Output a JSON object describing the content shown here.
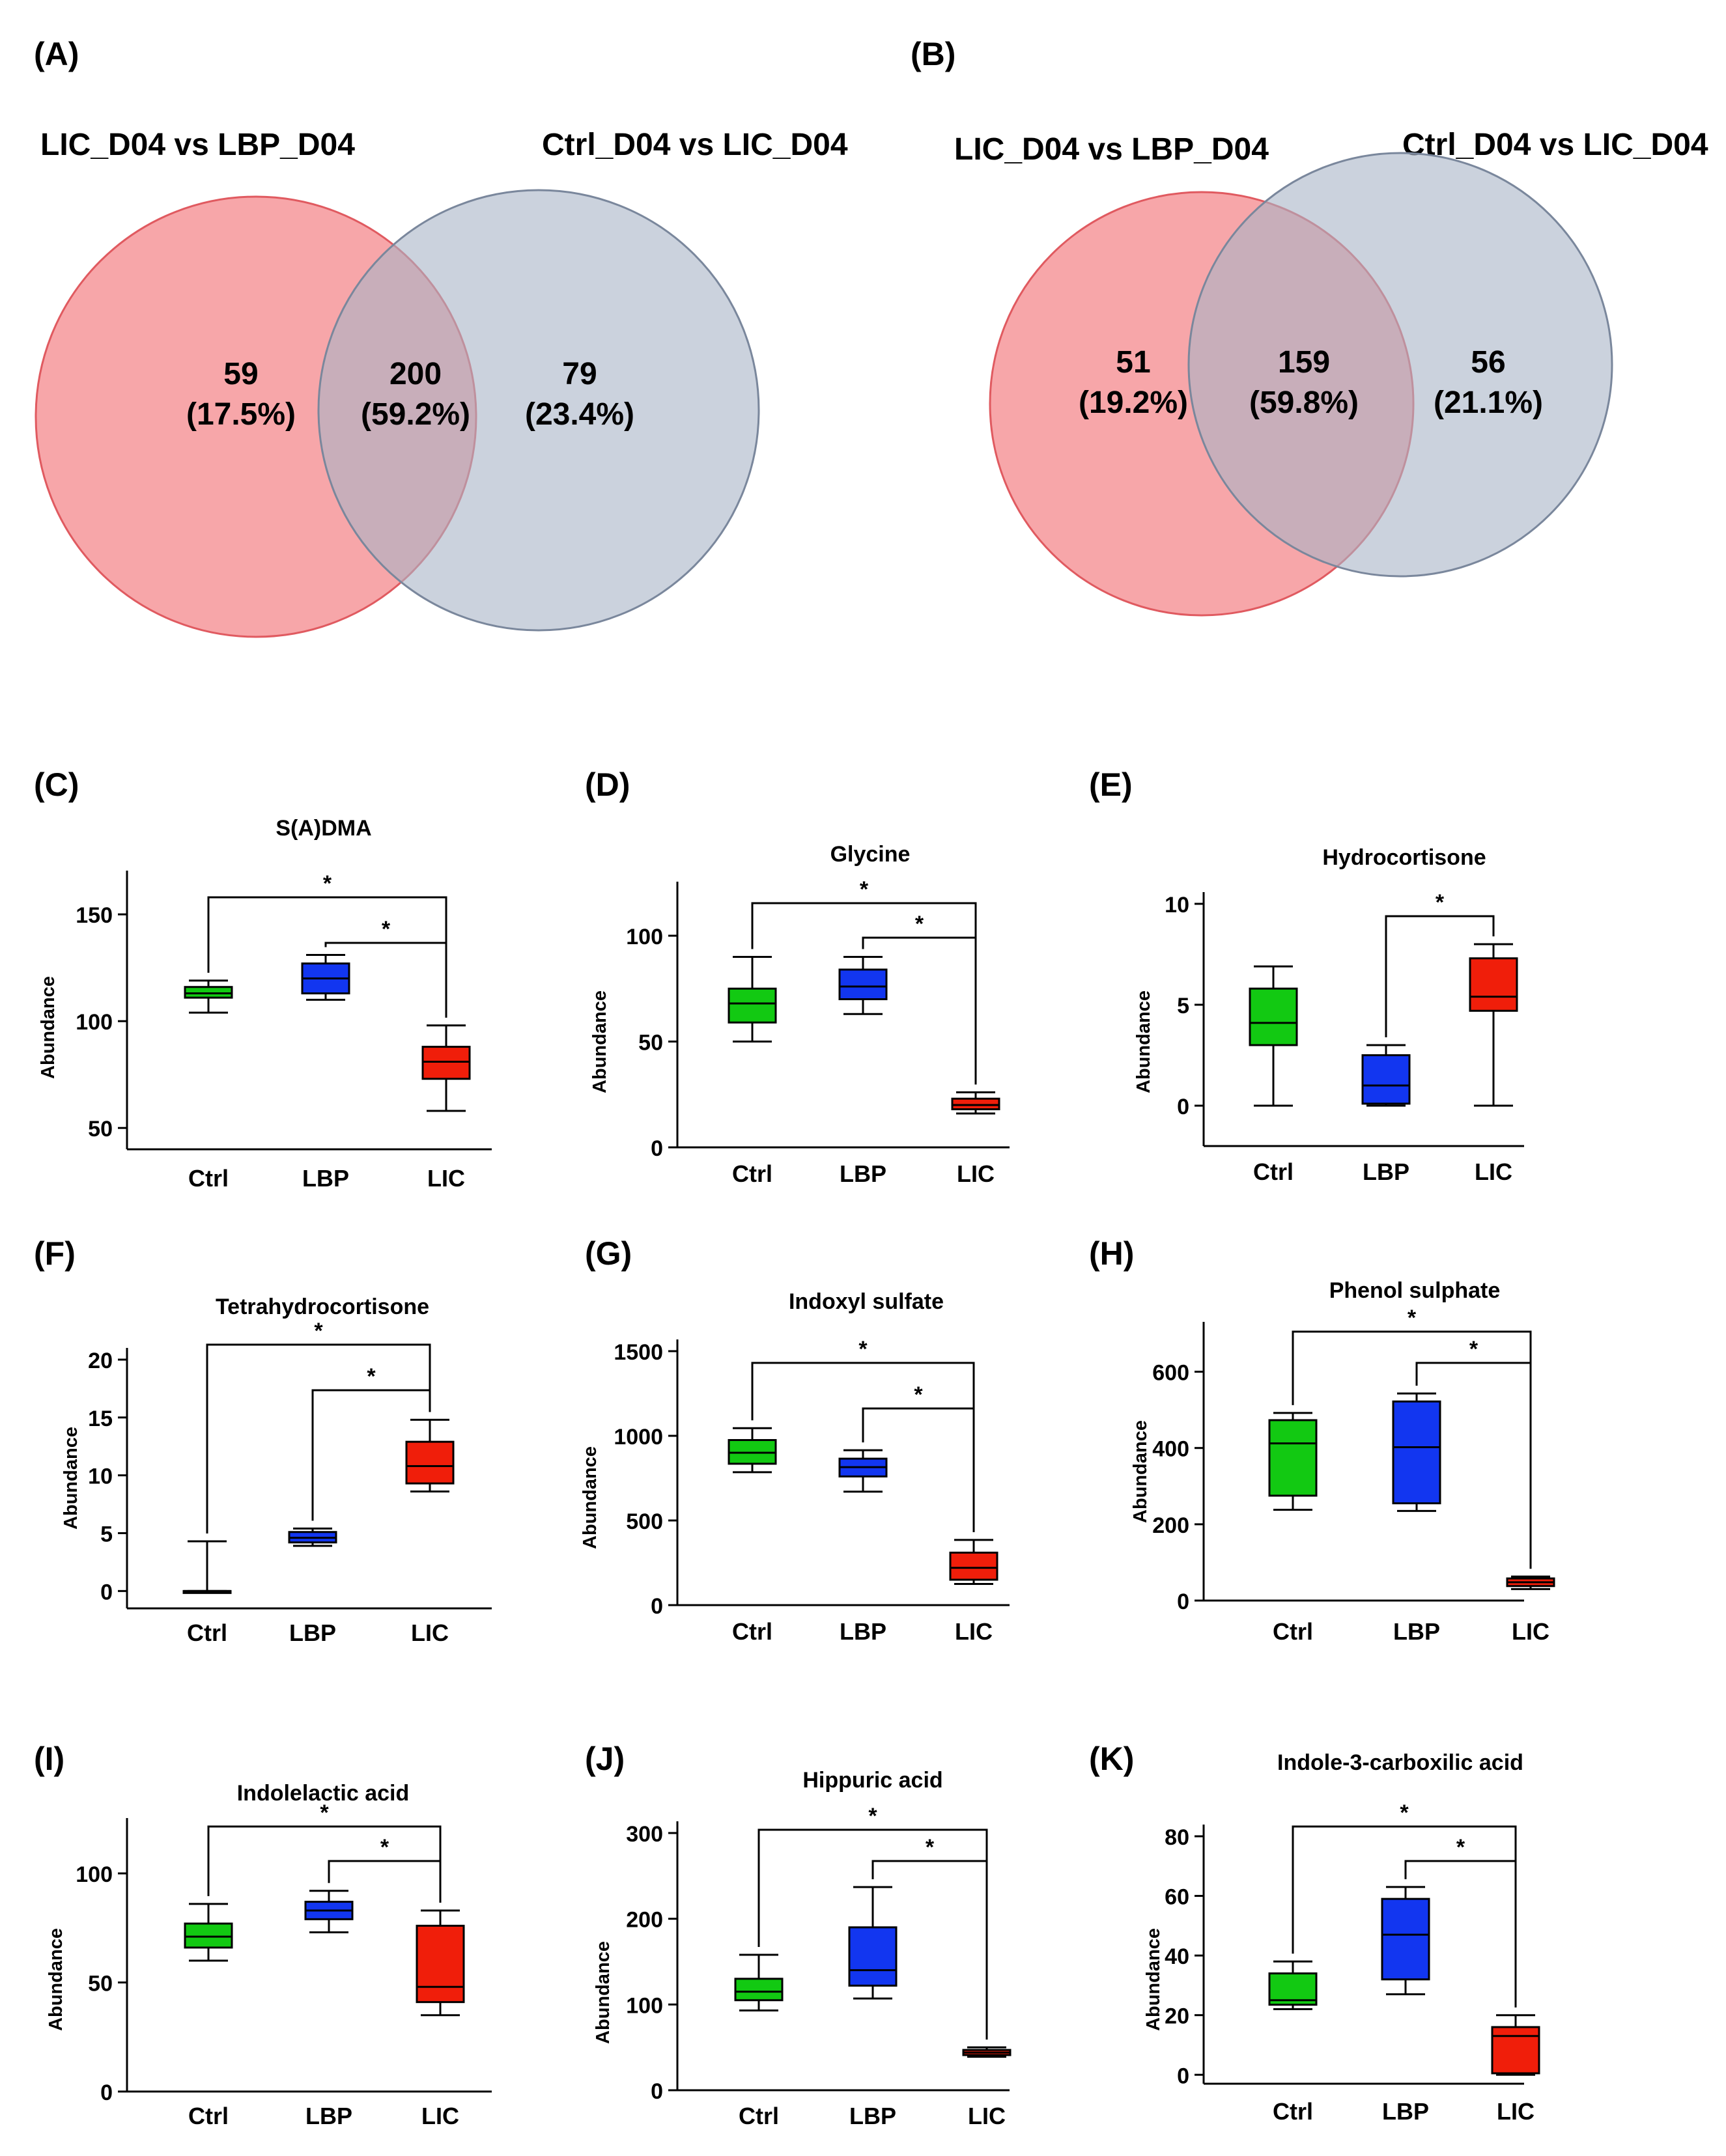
{
  "colors": {
    "venn_left": "#f4888c",
    "venn_left_stroke": "#e05a60",
    "venn_right": "#a8b4c6",
    "venn_right_stroke": "#7a879c",
    "Ctrl": "#12c912",
    "LBP": "#1236f0",
    "LIC": "#f01e0a",
    "axis": "#000000"
  },
  "venn": [
    {
      "panel": "(A)",
      "left_title": "LIC_D04 vs LBP_D04",
      "right_title": "Ctrl_D04 vs LIC_D04",
      "regions": [
        {
          "count": "59",
          "pct": "(17.5%)"
        },
        {
          "count": "200",
          "pct": "(59.2%)"
        },
        {
          "count": "79",
          "pct": "(23.4%)"
        }
      ]
    },
    {
      "panel": "(B)",
      "left_title": "LIC_D04 vs LBP_D04",
      "right_title": "Ctrl_D04 vs LIC_D04",
      "regions": [
        {
          "count": "51",
          "pct": "(19.2%)"
        },
        {
          "count": "159",
          "pct": "(59.8%)"
        },
        {
          "count": "56",
          "pct": "(21.1%)"
        }
      ]
    }
  ],
  "chart_data": [
    {
      "panel": "(C)",
      "type": "box",
      "title": "S(A)DMA",
      "ylabel": "Abundance",
      "categories": [
        "Ctrl",
        "LBP",
        "LIC"
      ],
      "ylim": [
        40,
        165
      ],
      "yticks": [
        50,
        100,
        150
      ],
      "boxes": [
        {
          "group": "Ctrl",
          "min": 104,
          "q1": 111,
          "median": 113,
          "q3": 116,
          "max": 119
        },
        {
          "group": "LBP",
          "min": 110,
          "q1": 113,
          "median": 120,
          "q3": 127,
          "max": 131
        },
        {
          "group": "LIC",
          "min": 58,
          "q1": 73,
          "median": 81,
          "q3": 88,
          "max": 98
        }
      ],
      "significance": [
        {
          "from": "Ctrl",
          "to": "LIC",
          "label": "*"
        },
        {
          "from": "LBP",
          "to": "LIC",
          "label": "*"
        }
      ]
    },
    {
      "panel": "(D)",
      "type": "box",
      "title": "Glycine",
      "ylabel": "Abundance",
      "categories": [
        "Ctrl",
        "LBP",
        "LIC"
      ],
      "ylim": [
        0,
        120
      ],
      "yticks": [
        0,
        50,
        100
      ],
      "boxes": [
        {
          "group": "Ctrl",
          "min": 50,
          "q1": 59,
          "median": 68,
          "q3": 75,
          "max": 90
        },
        {
          "group": "LBP",
          "min": 63,
          "q1": 70,
          "median": 76,
          "q3": 84,
          "max": 90
        },
        {
          "group": "LIC",
          "min": 16,
          "q1": 18,
          "median": 20,
          "q3": 23,
          "max": 26
        }
      ],
      "significance": [
        {
          "from": "Ctrl",
          "to": "LIC",
          "label": "*"
        },
        {
          "from": "LBP",
          "to": "LIC",
          "label": "*"
        }
      ]
    },
    {
      "panel": "(E)",
      "type": "box",
      "title": "Hydrocortisone",
      "ylabel": "Abundance",
      "categories": [
        "Ctrl",
        "LBP",
        "LIC"
      ],
      "ylim": [
        -2,
        10
      ],
      "yticks": [
        0,
        5,
        10
      ],
      "boxes": [
        {
          "group": "Ctrl",
          "min": 0,
          "q1": 3,
          "median": 4.1,
          "q3": 5.8,
          "max": 6.9
        },
        {
          "group": "LBP",
          "min": 0,
          "q1": 0.1,
          "median": 1,
          "q3": 2.5,
          "max": 3
        },
        {
          "group": "LIC",
          "min": 0,
          "q1": 4.7,
          "median": 5.4,
          "q3": 7.3,
          "max": 8
        }
      ],
      "significance": [
        {
          "from": "LBP",
          "to": "LIC",
          "label": "*"
        }
      ]
    },
    {
      "panel": "(F)",
      "type": "box",
      "title": "Tetrahydrocortisone",
      "ylabel": "Abundance",
      "categories": [
        "Ctrl",
        "LBP",
        "LIC"
      ],
      "ylim": [
        -1.5,
        20
      ],
      "yticks": [
        0,
        5,
        10,
        15,
        20
      ],
      "boxes": [
        {
          "group": "Ctrl",
          "min": 0,
          "q1": 0,
          "median": 0,
          "q3": 0,
          "max": 4.3
        },
        {
          "group": "LBP",
          "min": 3.9,
          "q1": 4.2,
          "median": 4.6,
          "q3": 5.1,
          "max": 5.4
        },
        {
          "group": "LIC",
          "min": 8.6,
          "q1": 9.3,
          "median": 10.8,
          "q3": 12.9,
          "max": 14.8
        }
      ],
      "significance": [
        {
          "from": "Ctrl",
          "to": "LIC",
          "label": "*"
        },
        {
          "from": "LBP",
          "to": "LIC",
          "label": "*"
        }
      ]
    },
    {
      "panel": "(G)",
      "type": "box",
      "title": "Indoxyl sulfate",
      "ylabel": "Abundance",
      "categories": [
        "Ctrl",
        "LBP",
        "LIC"
      ],
      "ylim": [
        0,
        1500
      ],
      "yticks": [
        0,
        500,
        1000,
        1500
      ],
      "boxes": [
        {
          "group": "Ctrl",
          "min": 785,
          "q1": 835,
          "median": 900,
          "q3": 975,
          "max": 1045
        },
        {
          "group": "LBP",
          "min": 670,
          "q1": 760,
          "median": 815,
          "q3": 865,
          "max": 915
        },
        {
          "group": "LIC",
          "min": 125,
          "q1": 150,
          "median": 220,
          "q3": 310,
          "max": 385
        }
      ],
      "significance": [
        {
          "from": "Ctrl",
          "to": "LIC",
          "label": "*"
        },
        {
          "from": "LBP",
          "to": "LIC",
          "label": "*"
        }
      ]
    },
    {
      "panel": "(H)",
      "type": "box",
      "title": "Phenol sulphate",
      "ylabel": "Abundance",
      "categories": [
        "Ctrl",
        "LBP",
        "LIC"
      ],
      "ylim": [
        0,
        700
      ],
      "yticks": [
        0,
        200,
        400,
        600
      ],
      "boxes": [
        {
          "group": "Ctrl",
          "min": 238,
          "q1": 275,
          "median": 412,
          "q3": 473,
          "max": 492
        },
        {
          "group": "LBP",
          "min": 235,
          "q1": 255,
          "median": 402,
          "q3": 522,
          "max": 543
        },
        {
          "group": "LIC",
          "min": 30,
          "q1": 38,
          "median": 48,
          "q3": 58,
          "max": 63
        }
      ],
      "significance": [
        {
          "from": "Ctrl",
          "to": "LIC",
          "label": "*"
        },
        {
          "from": "LBP",
          "to": "LIC",
          "label": "*"
        }
      ]
    },
    {
      "panel": "(I)",
      "type": "box",
      "title": "Indolelactic acid",
      "ylabel": "Abundance",
      "categories": [
        "Ctrl",
        "LBP",
        "LIC"
      ],
      "ylim": [
        0,
        120
      ],
      "yticks": [
        0,
        50,
        100
      ],
      "boxes": [
        {
          "group": "Ctrl",
          "min": 60,
          "q1": 66,
          "median": 71,
          "q3": 77,
          "max": 86
        },
        {
          "group": "LBP",
          "min": 73,
          "q1": 79,
          "median": 83,
          "q3": 87,
          "max": 92
        },
        {
          "group": "LIC",
          "min": 35,
          "q1": 41,
          "median": 48,
          "q3": 76,
          "max": 83
        }
      ],
      "significance": [
        {
          "from": "Ctrl",
          "to": "LIC",
          "label": "*"
        },
        {
          "from": "LBP",
          "to": "LIC",
          "label": "*"
        }
      ]
    },
    {
      "panel": "(J)",
      "type": "box",
      "title": "Hippuric acid",
      "ylabel": "Abundance",
      "categories": [
        "Ctrl",
        "LBP",
        "LIC"
      ],
      "ylim": [
        0,
        300
      ],
      "yticks": [
        0,
        100,
        200,
        300
      ],
      "boxes": [
        {
          "group": "Ctrl",
          "min": 93,
          "q1": 105,
          "median": 115,
          "q3": 130,
          "max": 158
        },
        {
          "group": "LBP",
          "min": 107,
          "q1": 122,
          "median": 140,
          "q3": 190,
          "max": 237
        },
        {
          "group": "LIC",
          "min": 39,
          "q1": 41,
          "median": 44,
          "q3": 47,
          "max": 50
        }
      ],
      "significance": [
        {
          "from": "Ctrl",
          "to": "LIC",
          "label": "*"
        },
        {
          "from": "LBP",
          "to": "LIC",
          "label": "*"
        }
      ]
    },
    {
      "panel": "(K)",
      "type": "box",
      "title": "Indole-3-carboxilic acid",
      "ylabel": "Abundance",
      "categories": [
        "Ctrl",
        "LBP",
        "LIC"
      ],
      "ylim": [
        -3,
        80
      ],
      "yticks": [
        0,
        20,
        40,
        60,
        80
      ],
      "boxes": [
        {
          "group": "Ctrl",
          "min": 22,
          "q1": 23.5,
          "median": 25,
          "q3": 34,
          "max": 38
        },
        {
          "group": "LBP",
          "min": 27,
          "q1": 32,
          "median": 47,
          "q3": 59,
          "max": 63
        },
        {
          "group": "LIC",
          "min": 0,
          "q1": 0.5,
          "median": 13,
          "q3": 16,
          "max": 20
        }
      ],
      "significance": [
        {
          "from": "Ctrl",
          "to": "LIC",
          "label": "*"
        },
        {
          "from": "LBP",
          "to": "LIC",
          "label": "*"
        }
      ]
    }
  ]
}
